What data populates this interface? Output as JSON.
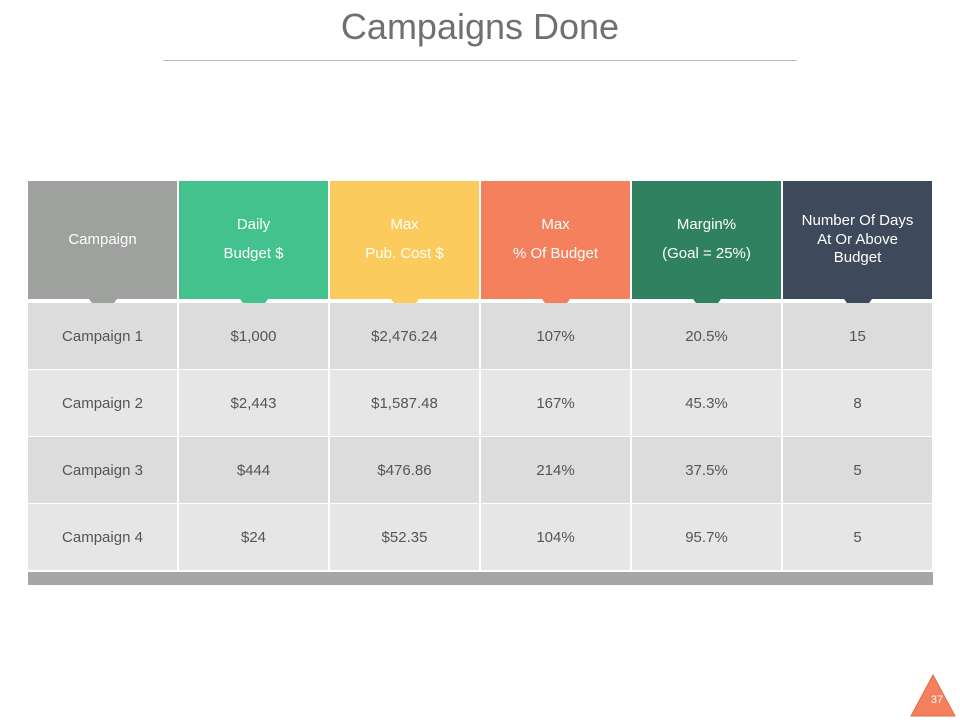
{
  "title": "Campaigns Done",
  "columns": [
    {
      "lines": [
        "Campaign"
      ],
      "color": "#9ea19d"
    },
    {
      "lines": [
        "Daily",
        "Budget $"
      ],
      "color": "#43c28d"
    },
    {
      "lines": [
        "Max",
        "Pub. Cost $"
      ],
      "color": "#fccb5e"
    },
    {
      "lines": [
        "Max",
        "% Of Budget"
      ],
      "color": "#f5805d"
    },
    {
      "lines": [
        "Margin%",
        "(Goal = 25%)"
      ],
      "color": "#2f8160"
    },
    {
      "lines": [
        "Number Of Days",
        "At Or Above",
        "Budget"
      ],
      "color": "#3e4a5c"
    }
  ],
  "rows": [
    [
      "Campaign 1",
      "$1,000",
      "$2,476.24",
      "107%",
      "20.5%",
      "15"
    ],
    [
      "Campaign 2",
      "$2,443",
      "$1,587.48",
      "167%",
      "45.3%",
      "8"
    ],
    [
      "Campaign 3",
      "$444",
      "$476.86",
      "214%",
      "37.5%",
      "5"
    ],
    [
      "Campaign 4",
      "$24",
      "$52.35",
      "104%",
      "95.7%",
      "5"
    ]
  ],
  "slide_number": "37",
  "accent": "#f5805d"
}
